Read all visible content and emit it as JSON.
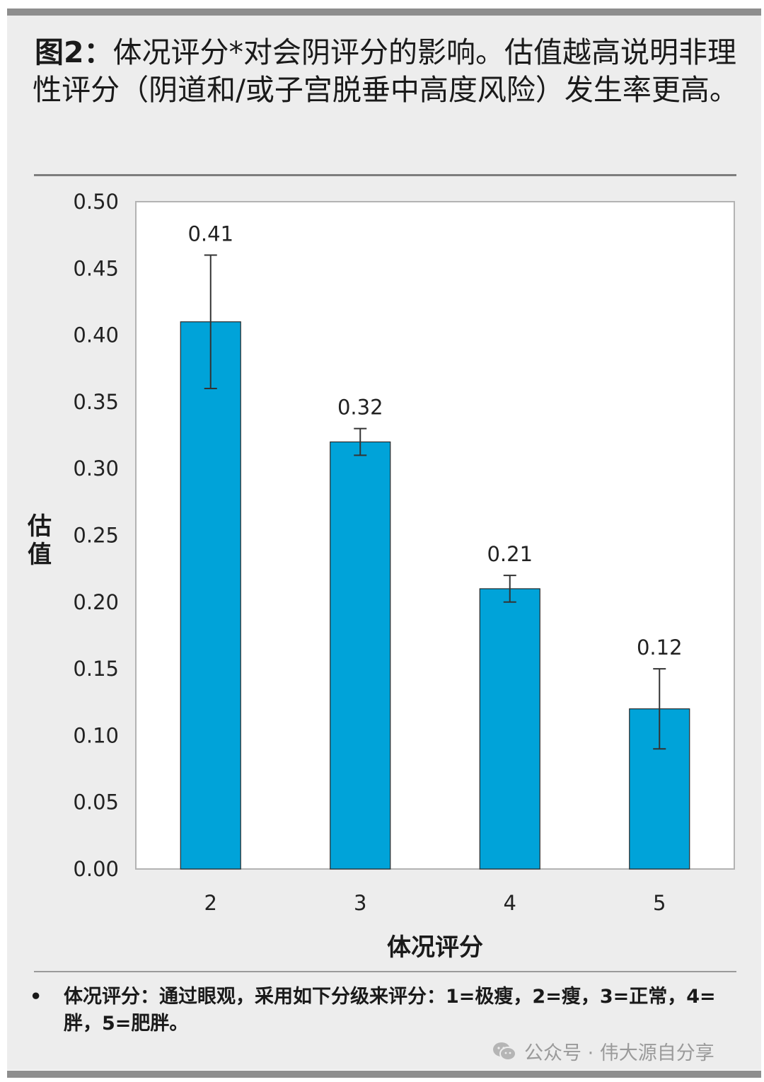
{
  "title": {
    "prefix": "图2：",
    "text": "体况评分*对会阴评分的影响。估值越高说明非理性评分（阴道和/或子宫脱垂中高度风险）发生率更高。"
  },
  "chart_data": {
    "type": "bar",
    "categories": [
      "2",
      "3",
      "4",
      "5"
    ],
    "values": [
      0.41,
      0.32,
      0.21,
      0.12
    ],
    "value_labels": [
      "0.41",
      "0.32",
      "0.21",
      "0.12"
    ],
    "error_bars": [
      [
        0.36,
        0.46
      ],
      [
        0.31,
        0.33
      ],
      [
        0.2,
        0.22
      ],
      [
        0.09,
        0.15
      ]
    ],
    "xlabel": "体况评分",
    "ylabel": "估值",
    "ylim": [
      0,
      0.5
    ],
    "yticks": [
      "0.00",
      "0.05",
      "0.10",
      "0.15",
      "0.20",
      "0.25",
      "0.30",
      "0.35",
      "0.40",
      "0.45",
      "0.50"
    ],
    "bar_color": "#00a3d9",
    "grid": false
  },
  "footnote": {
    "bullet": "•",
    "text": "体况评分：通过眼观，采用如下分级来评分：1=极瘦，2=瘦，3=正常，4=胖，5=肥胖。"
  },
  "watermark": {
    "icon": "wechat-icon",
    "text": "公众号 · 伟大源自分享"
  }
}
